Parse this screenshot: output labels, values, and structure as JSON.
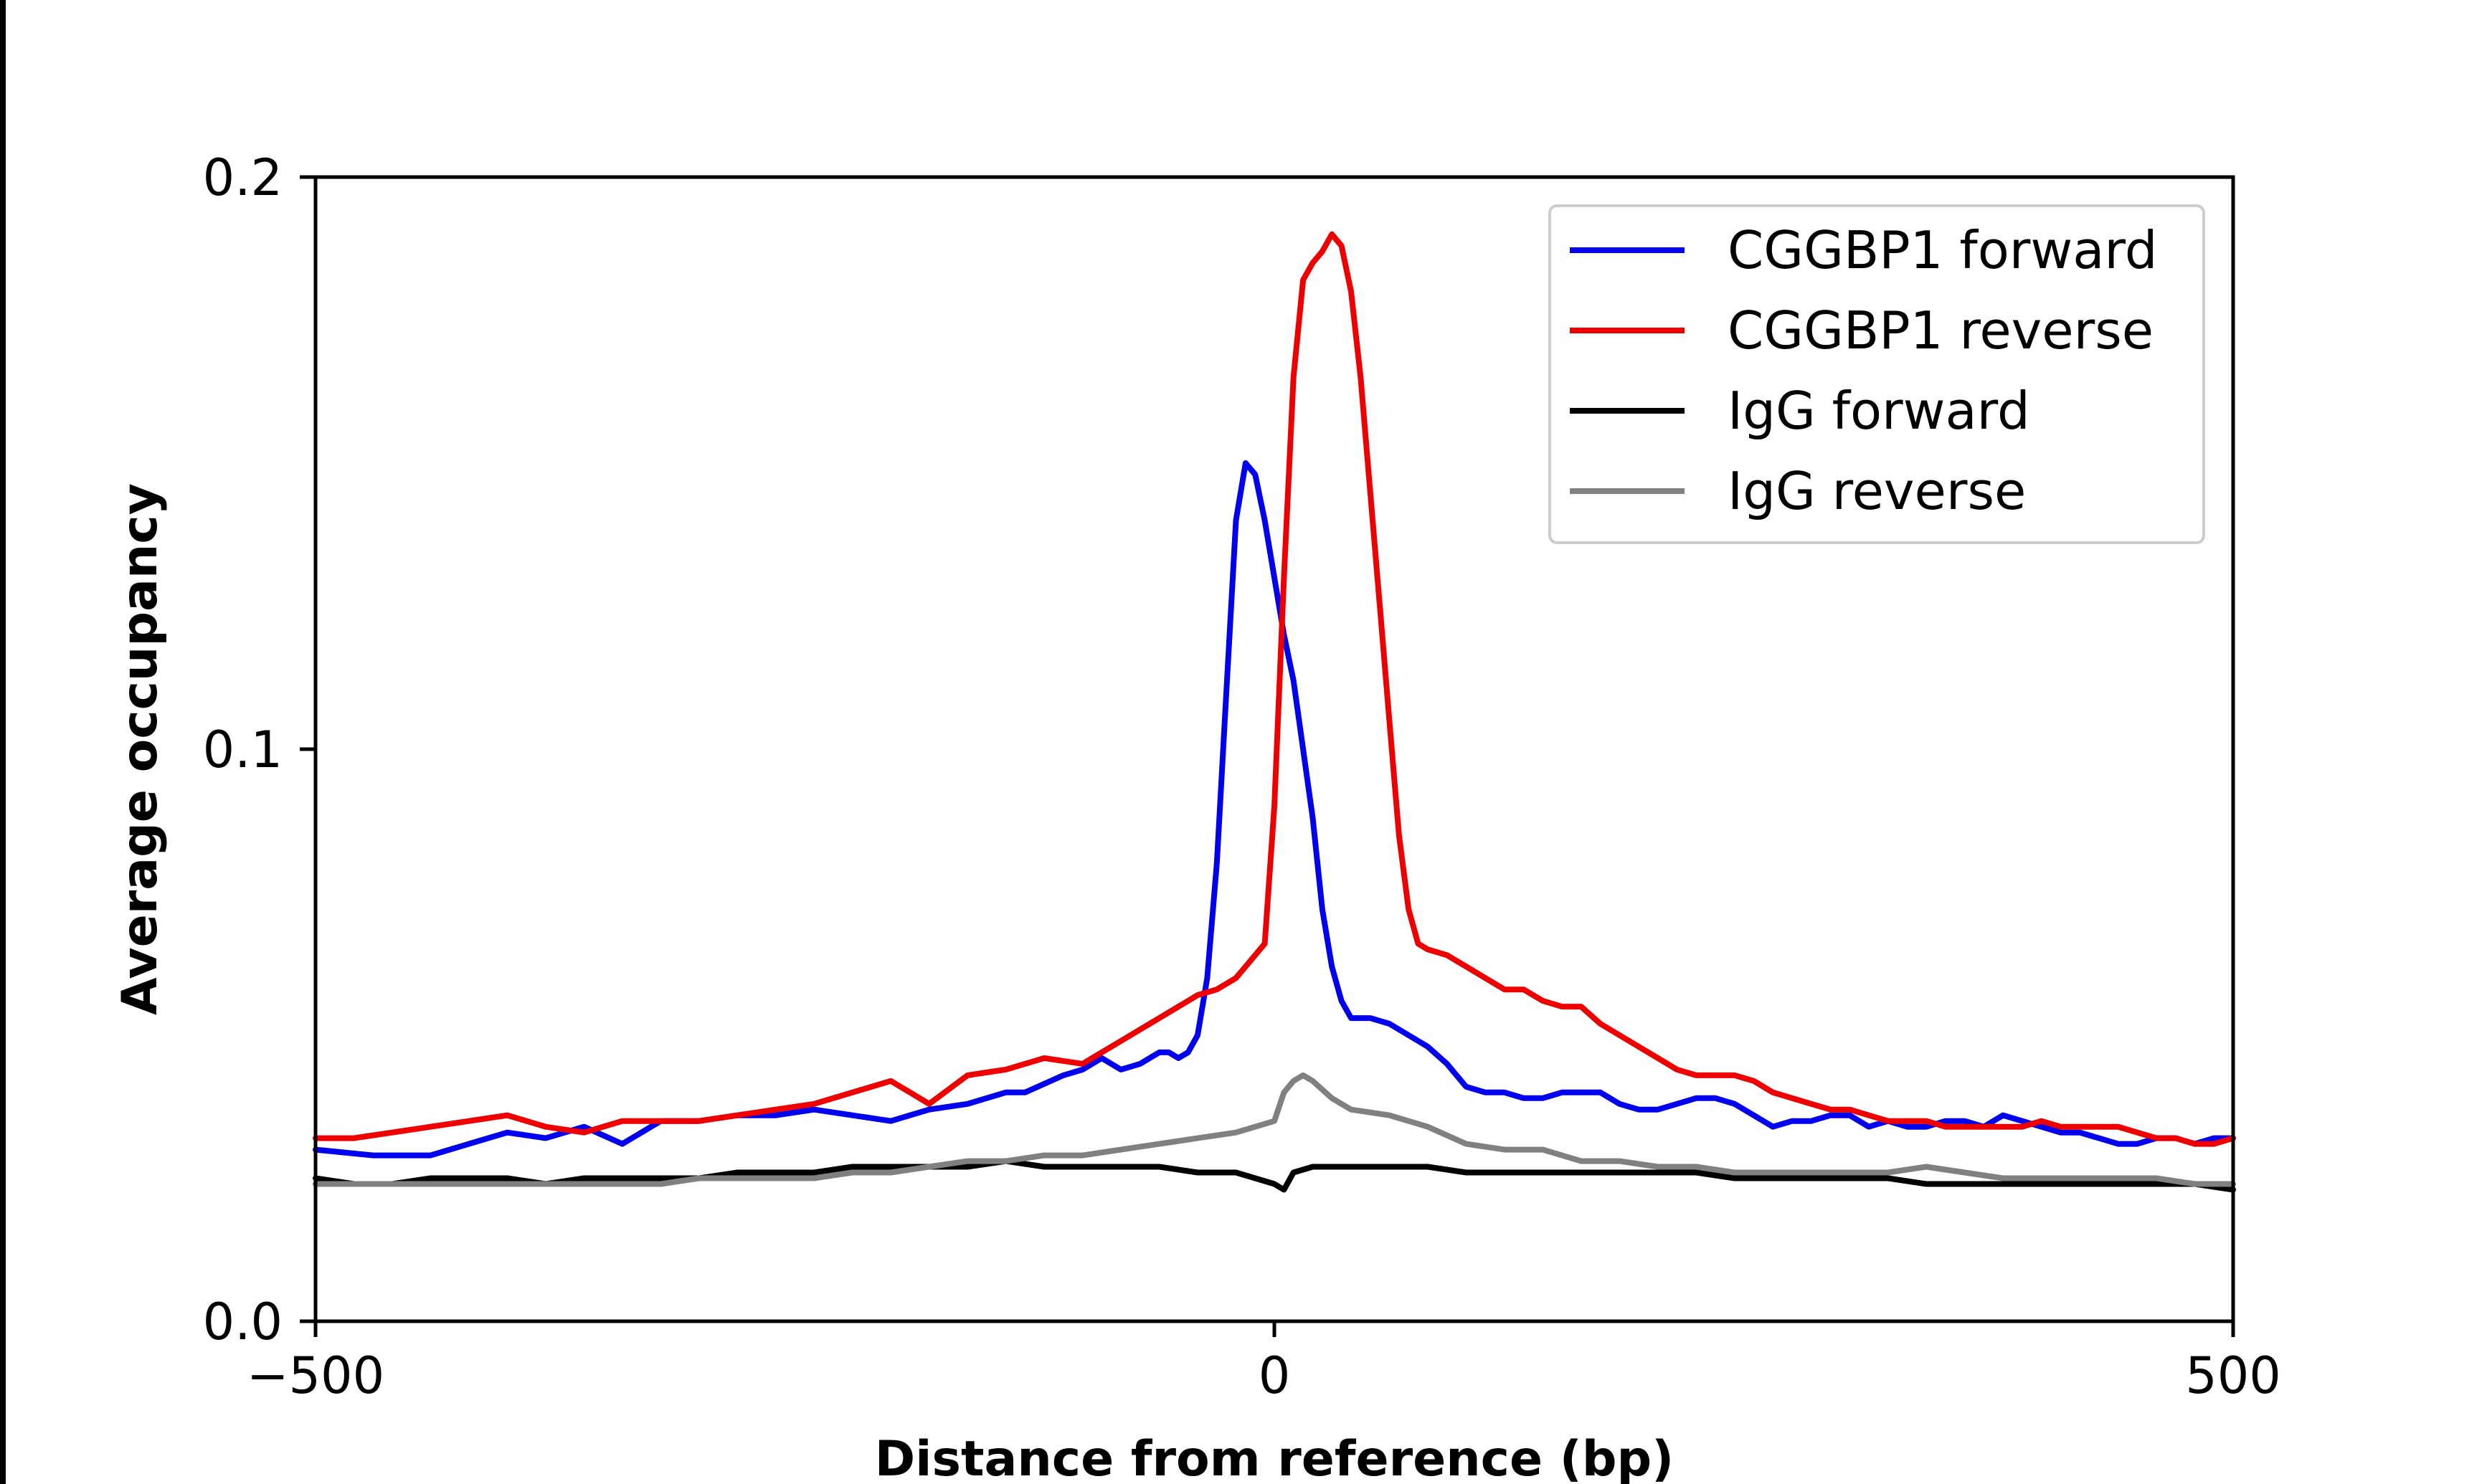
{
  "chart_data": {
    "type": "line",
    "title": "",
    "xlabel": "Distance from reference (bp)",
    "ylabel": "Average occupancy",
    "xlim": [
      -500,
      500
    ],
    "ylim": [
      0,
      0.2
    ],
    "x_ticks": [
      -500,
      0,
      500
    ],
    "x_tick_labels": [
      "−500",
      "0",
      "500"
    ],
    "y_ticks": [
      0,
      0.1,
      0.2
    ],
    "y_tick_labels": [
      "0.0",
      "0.1",
      "0.2"
    ],
    "grid": false,
    "legend_position": "top-right",
    "series": [
      {
        "name": "CGGBP1 forward",
        "color": "#0000ee",
        "x": [
          -500,
          -470,
          -440,
          -420,
          -400,
          -380,
          -360,
          -340,
          -320,
          -300,
          -280,
          -260,
          -240,
          -220,
          -200,
          -180,
          -160,
          -140,
          -130,
          -110,
          -100,
          -90,
          -80,
          -70,
          -60,
          -55,
          -50,
          -45,
          -40,
          -35,
          -30,
          -25,
          -20,
          -15,
          -10,
          -5,
          0,
          5,
          10,
          15,
          20,
          25,
          30,
          35,
          40,
          45,
          50,
          60,
          70,
          80,
          90,
          100,
          110,
          120,
          130,
          140,
          150,
          160,
          170,
          180,
          190,
          200,
          210,
          220,
          230,
          240,
          250,
          260,
          270,
          280,
          290,
          300,
          310,
          320,
          330,
          340,
          350,
          360,
          370,
          380,
          390,
          400,
          410,
          420,
          430,
          440,
          450,
          460,
          470,
          480,
          490,
          500
        ],
        "y": [
          0.03,
          0.029,
          0.029,
          0.031,
          0.033,
          0.032,
          0.034,
          0.031,
          0.035,
          0.035,
          0.036,
          0.036,
          0.037,
          0.036,
          0.035,
          0.037,
          0.038,
          0.04,
          0.04,
          0.043,
          0.044,
          0.046,
          0.044,
          0.045,
          0.047,
          0.047,
          0.046,
          0.047,
          0.05,
          0.06,
          0.08,
          0.11,
          0.14,
          0.15,
          0.148,
          0.14,
          0.13,
          0.12,
          0.112,
          0.1,
          0.088,
          0.072,
          0.062,
          0.056,
          0.053,
          0.053,
          0.053,
          0.052,
          0.05,
          0.048,
          0.045,
          0.041,
          0.04,
          0.04,
          0.039,
          0.039,
          0.04,
          0.04,
          0.04,
          0.038,
          0.037,
          0.037,
          0.038,
          0.039,
          0.039,
          0.038,
          0.036,
          0.034,
          0.035,
          0.035,
          0.036,
          0.036,
          0.034,
          0.035,
          0.034,
          0.034,
          0.035,
          0.035,
          0.034,
          0.036,
          0.035,
          0.034,
          0.033,
          0.033,
          0.032,
          0.031,
          0.031,
          0.032,
          0.032,
          0.031,
          0.032,
          0.032
        ]
      },
      {
        "name": "CGGBP1 reverse",
        "color": "#ee0000",
        "x": [
          -500,
          -480,
          -460,
          -440,
          -420,
          -400,
          -380,
          -360,
          -340,
          -320,
          -300,
          -280,
          -260,
          -240,
          -220,
          -200,
          -180,
          -160,
          -140,
          -120,
          -100,
          -80,
          -60,
          -50,
          -40,
          -30,
          -20,
          -10,
          -5,
          0,
          5,
          10,
          15,
          20,
          25,
          30,
          35,
          40,
          45,
          50,
          55,
          60,
          65,
          70,
          75,
          80,
          90,
          100,
          110,
          120,
          130,
          140,
          150,
          160,
          170,
          180,
          190,
          200,
          210,
          220,
          230,
          240,
          250,
          260,
          270,
          280,
          290,
          300,
          310,
          320,
          330,
          340,
          350,
          360,
          370,
          380,
          390,
          400,
          410,
          420,
          430,
          440,
          450,
          460,
          470,
          480,
          490,
          500
        ],
        "y": [
          0.032,
          0.032,
          0.033,
          0.034,
          0.035,
          0.036,
          0.034,
          0.033,
          0.035,
          0.035,
          0.035,
          0.036,
          0.037,
          0.038,
          0.04,
          0.042,
          0.038,
          0.043,
          0.044,
          0.046,
          0.045,
          0.049,
          0.053,
          0.055,
          0.057,
          0.058,
          0.06,
          0.064,
          0.066,
          0.09,
          0.13,
          0.165,
          0.182,
          0.185,
          0.187,
          0.19,
          0.188,
          0.18,
          0.165,
          0.145,
          0.125,
          0.105,
          0.085,
          0.072,
          0.066,
          0.065,
          0.064,
          0.062,
          0.06,
          0.058,
          0.058,
          0.056,
          0.055,
          0.055,
          0.052,
          0.05,
          0.048,
          0.046,
          0.044,
          0.043,
          0.043,
          0.043,
          0.042,
          0.04,
          0.039,
          0.038,
          0.037,
          0.037,
          0.036,
          0.035,
          0.035,
          0.035,
          0.034,
          0.034,
          0.034,
          0.034,
          0.034,
          0.035,
          0.034,
          0.034,
          0.034,
          0.034,
          0.033,
          0.032,
          0.032,
          0.031,
          0.031,
          0.032
        ]
      },
      {
        "name": "IgG forward",
        "color": "#000000",
        "x": [
          -500,
          -480,
          -460,
          -440,
          -420,
          -400,
          -380,
          -360,
          -340,
          -320,
          -300,
          -280,
          -260,
          -240,
          -220,
          -200,
          -180,
          -160,
          -140,
          -120,
          -100,
          -80,
          -60,
          -40,
          -20,
          -10,
          0,
          5,
          10,
          20,
          40,
          60,
          80,
          100,
          120,
          140,
          160,
          180,
          200,
          220,
          240,
          260,
          280,
          300,
          320,
          340,
          360,
          380,
          400,
          420,
          440,
          460,
          480,
          500
        ],
        "y": [
          0.025,
          0.024,
          0.024,
          0.025,
          0.025,
          0.025,
          0.024,
          0.025,
          0.025,
          0.025,
          0.025,
          0.026,
          0.026,
          0.026,
          0.027,
          0.027,
          0.027,
          0.027,
          0.028,
          0.027,
          0.027,
          0.027,
          0.027,
          0.026,
          0.026,
          0.025,
          0.024,
          0.023,
          0.026,
          0.027,
          0.027,
          0.027,
          0.027,
          0.026,
          0.026,
          0.026,
          0.026,
          0.026,
          0.026,
          0.026,
          0.025,
          0.025,
          0.025,
          0.025,
          0.025,
          0.024,
          0.024,
          0.024,
          0.024,
          0.024,
          0.024,
          0.024,
          0.024,
          0.023
        ]
      },
      {
        "name": "IgG reverse",
        "color": "#808080",
        "x": [
          -500,
          -480,
          -460,
          -440,
          -420,
          -400,
          -380,
          -360,
          -340,
          -320,
          -300,
          -280,
          -260,
          -240,
          -220,
          -200,
          -180,
          -160,
          -140,
          -120,
          -100,
          -80,
          -60,
          -40,
          -20,
          -10,
          0,
          5,
          10,
          15,
          20,
          30,
          40,
          60,
          80,
          100,
          120,
          140,
          160,
          180,
          200,
          220,
          240,
          260,
          280,
          300,
          320,
          340,
          360,
          380,
          400,
          420,
          440,
          460,
          480,
          500
        ],
        "y": [
          0.024,
          0.024,
          0.024,
          0.024,
          0.024,
          0.024,
          0.024,
          0.024,
          0.024,
          0.024,
          0.025,
          0.025,
          0.025,
          0.025,
          0.026,
          0.026,
          0.027,
          0.028,
          0.028,
          0.029,
          0.029,
          0.03,
          0.031,
          0.032,
          0.033,
          0.034,
          0.035,
          0.04,
          0.042,
          0.043,
          0.042,
          0.039,
          0.037,
          0.036,
          0.034,
          0.031,
          0.03,
          0.03,
          0.028,
          0.028,
          0.027,
          0.027,
          0.026,
          0.026,
          0.026,
          0.026,
          0.026,
          0.027,
          0.026,
          0.025,
          0.025,
          0.025,
          0.025,
          0.025,
          0.024,
          0.024
        ]
      }
    ]
  }
}
